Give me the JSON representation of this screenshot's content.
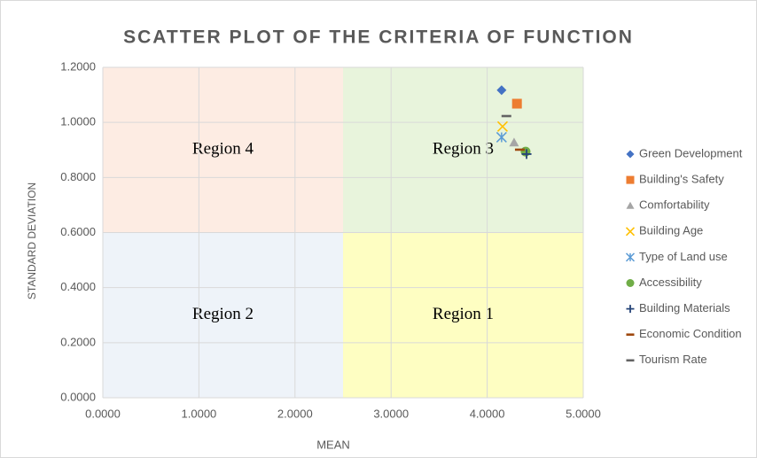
{
  "chart_data": {
    "type": "scatter",
    "title": "SCATTER PLOT OF THE CRITERIA OF FUNCTION",
    "x_label": "MEAN",
    "y_label": "STANDARD DEVIATION",
    "xlim": [
      0,
      5
    ],
    "ylim": [
      0,
      1.2
    ],
    "xticks": [
      {
        "value": 0,
        "label": "0.0000"
      },
      {
        "value": 1,
        "label": "1.0000"
      },
      {
        "value": 2,
        "label": "2.0000"
      },
      {
        "value": 3,
        "label": "3.0000"
      },
      {
        "value": 4,
        "label": "4.0000"
      },
      {
        "value": 5,
        "label": "5.0000"
      }
    ],
    "yticks": [
      {
        "value": 0,
        "label": "0.0000"
      },
      {
        "value": 0.2,
        "label": "0.2000"
      },
      {
        "value": 0.4,
        "label": "0.4000"
      },
      {
        "value": 0.6,
        "label": "0.6000"
      },
      {
        "value": 0.8,
        "label": "0.8000"
      },
      {
        "value": 1,
        "label": "1.0000"
      },
      {
        "value": 1.2,
        "label": "1.2000"
      }
    ],
    "grid": true,
    "legend": "right",
    "regions": [
      {
        "label": "Region 4",
        "x": [
          0,
          2.5
        ],
        "y": [
          0.6,
          1.2
        ],
        "color": "#fdece3"
      },
      {
        "label": "Region 3",
        "x": [
          2.5,
          5
        ],
        "y": [
          0.6,
          1.2
        ],
        "color": "#e8f4dc"
      },
      {
        "label": "Region 2",
        "x": [
          0,
          2.5
        ],
        "y": [
          0,
          0.6
        ],
        "color": "#eef3f9"
      },
      {
        "label": "Region 1",
        "x": [
          2.5,
          5
        ],
        "y": [
          0,
          0.6
        ],
        "color": "#fefec2"
      }
    ],
    "series": [
      {
        "name": "Green Development",
        "color": "#4472c4",
        "marker": "diamond",
        "x": [
          4.15
        ],
        "values": [
          1.117
        ]
      },
      {
        "name": "Building's Safety",
        "color": "#ed7d31",
        "marker": "square",
        "x": [
          4.31
        ],
        "values": [
          1.068
        ]
      },
      {
        "name": "Comfortability",
        "color": "#a5a5a5",
        "marker": "triangle",
        "x": [
          4.28
        ],
        "values": [
          0.927
        ]
      },
      {
        "name": "Building Age",
        "color": "#ffc000",
        "marker": "x",
        "x": [
          4.16
        ],
        "values": [
          0.985
        ]
      },
      {
        "name": "Type of Land use",
        "color": "#5b9bd5",
        "marker": "asterisk",
        "x": [
          4.15
        ],
        "values": [
          0.946
        ]
      },
      {
        "name": "Accessibility",
        "color": "#70ad47",
        "marker": "circle",
        "x": [
          4.4
        ],
        "values": [
          0.894
        ]
      },
      {
        "name": "Building Materials",
        "color": "#264478",
        "marker": "plus",
        "x": [
          4.41
        ],
        "values": [
          0.885
        ]
      },
      {
        "name": "Economic Condition",
        "color": "#9e480e",
        "marker": "dash",
        "x": [
          4.34
        ],
        "values": [
          0.901
        ]
      },
      {
        "name": "Tourism Rate",
        "color": "#636363",
        "marker": "dash",
        "x": [
          4.2
        ],
        "values": [
          1.023
        ]
      }
    ]
  }
}
